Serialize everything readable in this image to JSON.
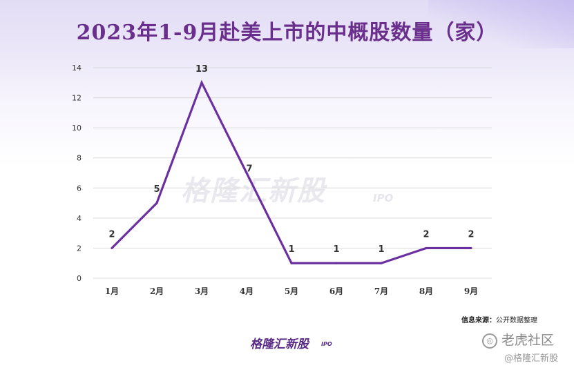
{
  "title": "2023年1-9月赴美上市的中概股数量（家）",
  "source": {
    "label": "信息来源：",
    "text": "公开数据整理"
  },
  "watermark": {
    "text": "格隆汇新股",
    "sub": "IPO"
  },
  "brand": {
    "text": "格隆汇新股",
    "sub": "IPO"
  },
  "overlay": {
    "platform": "老虎社区",
    "handle": "@格隆汇新股"
  },
  "colors": {
    "line": "#6b2fa0",
    "title": "#6a2f8c",
    "grid": "#d9d9d9"
  },
  "chart_data": {
    "type": "line",
    "title": "2023年1-9月赴美上市的中概股数量（家）",
    "categories": [
      "1月",
      "2月",
      "3月",
      "4月",
      "5月",
      "6月",
      "7月",
      "8月",
      "9月"
    ],
    "values": [
      2,
      5,
      13,
      7,
      1,
      1,
      1,
      2,
      2
    ],
    "data_labels": [
      "2",
      "5",
      "13",
      "7",
      "1",
      "1",
      "1",
      "2",
      "2"
    ],
    "yticks": [
      "0",
      "2",
      "4",
      "6",
      "8",
      "10",
      "12",
      "14"
    ],
    "ylim": [
      0,
      14
    ],
    "grid": true,
    "legend": "none"
  }
}
